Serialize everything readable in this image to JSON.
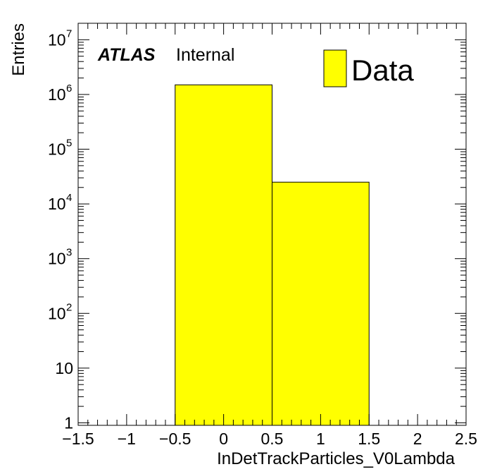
{
  "chart_data": {
    "type": "bar",
    "histogram": true,
    "bins": [
      {
        "low": -0.5,
        "high": 0.5,
        "value": 1500000
      },
      {
        "low": 0.5,
        "high": 1.5,
        "value": 25000
      }
    ],
    "xlabel": "InDetTrackParticles_V0Lambda",
    "ylabel": "Entries",
    "xlim": [
      -1.5,
      2.5
    ],
    "ylim": [
      0.9,
      20000000
    ],
    "yscale": "log",
    "x_ticks": [
      -1.5,
      -1,
      -0.5,
      0,
      0.5,
      1,
      1.5,
      2,
      2.5
    ],
    "x_tick_labels": [
      "−1.5",
      "−1",
      "−0.5",
      "0",
      "0.5",
      "1",
      "1.5",
      "2",
      "2.5"
    ],
    "y_ticks": [
      {
        "value": 1,
        "base": "1",
        "exp": ""
      },
      {
        "value": 10,
        "base": "10",
        "exp": ""
      },
      {
        "value": 100,
        "base": "10",
        "exp": "2"
      },
      {
        "value": 1000,
        "base": "10",
        "exp": "3"
      },
      {
        "value": 10000,
        "base": "10",
        "exp": "4"
      },
      {
        "value": 100000,
        "base": "10",
        "exp": "5"
      },
      {
        "value": 1000000,
        "base": "10",
        "exp": "6"
      },
      {
        "value": 10000000,
        "base": "10",
        "exp": "7"
      }
    ],
    "bar_color": "#ffff00",
    "grid": false,
    "legend": {
      "position": "top-right",
      "entries": [
        {
          "label": "Data",
          "color": "#ffff00"
        }
      ]
    },
    "annotation": {
      "bold": "ATLAS",
      "normal": "Internal"
    }
  }
}
